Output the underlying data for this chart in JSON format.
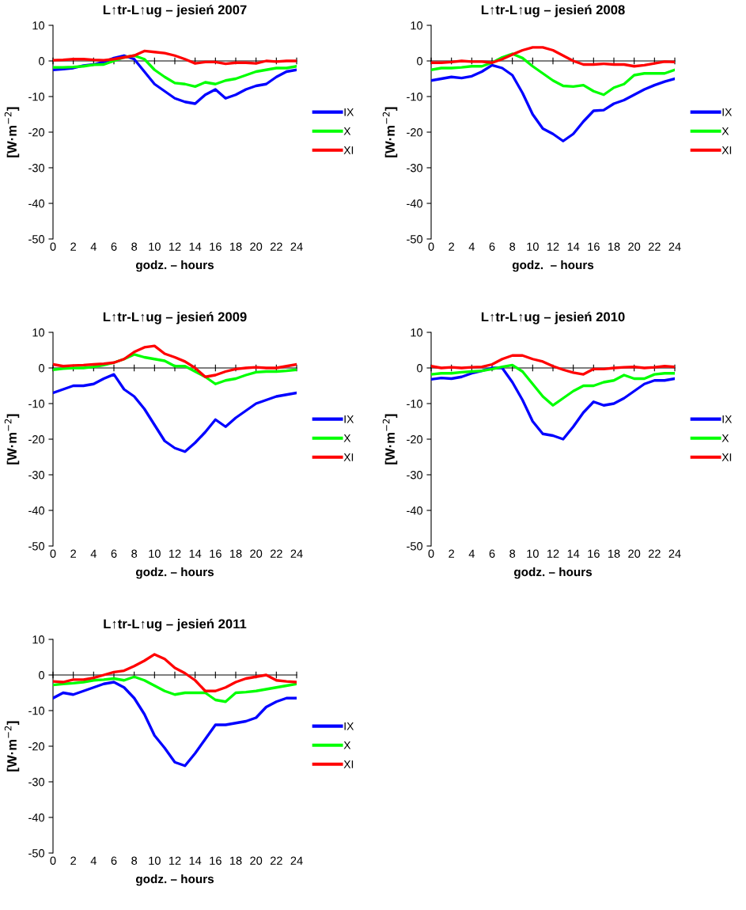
{
  "chart_data": [
    {
      "type": "line",
      "title": "L↑tr-L↑ug – jesień 2007",
      "xlabel": "godz. – hours",
      "ylabel": "[W·m$^{−2}$]",
      "x": [
        0,
        1,
        2,
        3,
        4,
        5,
        6,
        7,
        8,
        9,
        10,
        11,
        12,
        13,
        14,
        15,
        16,
        17,
        18,
        19,
        20,
        21,
        22,
        23,
        24
      ],
      "xlim": [
        0,
        24
      ],
      "ylim": [
        -50,
        10
      ],
      "xticks": [
        0,
        2,
        4,
        6,
        8,
        10,
        12,
        14,
        16,
        18,
        20,
        22,
        24
      ],
      "yticks": [
        -50,
        -40,
        -30,
        -20,
        -10,
        0,
        10
      ],
      "legend": "right",
      "marker": "none",
      "line_style": "solid",
      "series": [
        {
          "name": "IX",
          "color": "#0000ff",
          "values": [
            -2.5,
            -2.3,
            -2,
            -1.3,
            -1,
            -0.3,
            0.8,
            1.5,
            0.5,
            -3,
            -6.5,
            -8.5,
            -10.5,
            -11.5,
            -12,
            -9.5,
            -8,
            -10.5,
            -9.5,
            -8,
            -7,
            -6.5,
            -4.5,
            -3,
            -2.5
          ]
        },
        {
          "name": "X",
          "color": "#00ff00",
          "values": [
            -1.8,
            -1.8,
            -1.7,
            -1.5,
            -1.1,
            -1,
            0,
            1,
            1.5,
            0.5,
            -2.5,
            -4.5,
            -6.2,
            -6.5,
            -7.2,
            -6,
            -6.5,
            -5.5,
            -5,
            -4,
            -3,
            -2.5,
            -2,
            -2,
            -1.5
          ]
        },
        {
          "name": "XI",
          "color": "#ff0000",
          "values": [
            0.2,
            0.3,
            0.5,
            0.5,
            0.3,
            0.2,
            0.5,
            1,
            1.5,
            2.8,
            2.5,
            2.2,
            1.5,
            0.5,
            -0.7,
            -0.3,
            -0.3,
            -0.8,
            -0.5,
            -0.5,
            -0.7,
            0,
            -0.2,
            0,
            0
          ]
        }
      ]
    },
    {
      "type": "line",
      "title": "L↑tr-L↑ug – jesień 2008",
      "xlabel": "godz.  – hours",
      "ylabel": "[W·m$^{−2}$]",
      "x": [
        0,
        1,
        2,
        3,
        4,
        5,
        6,
        7,
        8,
        9,
        10,
        11,
        12,
        13,
        14,
        15,
        16,
        17,
        18,
        19,
        20,
        21,
        22,
        23,
        24
      ],
      "xlim": [
        0,
        24
      ],
      "ylim": [
        -50,
        10
      ],
      "xticks": [
        0,
        2,
        4,
        6,
        8,
        10,
        12,
        14,
        16,
        18,
        20,
        22,
        24
      ],
      "yticks": [
        -50,
        -40,
        -30,
        -20,
        -10,
        0,
        10
      ],
      "legend": "right",
      "marker": "none",
      "line_style": "solid",
      "series": [
        {
          "name": "IX",
          "color": "#0000ff",
          "values": [
            -5.5,
            -5,
            -4.5,
            -4.8,
            -4.3,
            -3,
            -1.2,
            -2,
            -4,
            -9,
            -15,
            -19,
            -20.5,
            -22.5,
            -20.5,
            -17,
            -14,
            -13.8,
            -12,
            -11,
            -9.5,
            -8,
            -6.8,
            -5.8,
            -5
          ]
        },
        {
          "name": "X",
          "color": "#00ff00",
          "values": [
            -2.5,
            -2,
            -2,
            -1.8,
            -1.5,
            -1.5,
            -0.5,
            1,
            2,
            0.8,
            -1.5,
            -3.5,
            -5.5,
            -7,
            -7.2,
            -6.8,
            -8.5,
            -9.5,
            -7.5,
            -6.5,
            -4,
            -3.5,
            -3.5,
            -3.5,
            -2.5
          ]
        },
        {
          "name": "XI",
          "color": "#ff0000",
          "values": [
            -0.5,
            -0.5,
            -0.3,
            0,
            -0.2,
            -0.2,
            -0.5,
            0.5,
            1.8,
            3,
            3.8,
            3.8,
            3,
            1.5,
            0,
            -1,
            -1,
            -0.8,
            -1,
            -1,
            -1.5,
            -1.2,
            -0.7,
            -0.2,
            -0.3
          ]
        }
      ]
    },
    {
      "type": "line",
      "title": "L↑tr-L↑ug – jesień 2009",
      "xlabel": "godz. – hours",
      "ylabel": "[W·m$^{−2}$]",
      "x": [
        0,
        1,
        2,
        3,
        4,
        5,
        6,
        7,
        8,
        9,
        10,
        11,
        12,
        13,
        14,
        15,
        16,
        17,
        18,
        19,
        20,
        21,
        22,
        23,
        24
      ],
      "xlim": [
        0,
        24
      ],
      "ylim": [
        -50,
        10
      ],
      "xticks": [
        0,
        2,
        4,
        6,
        8,
        10,
        12,
        14,
        16,
        18,
        20,
        22,
        24
      ],
      "yticks": [
        -50,
        -40,
        -30,
        -20,
        -10,
        0,
        10
      ],
      "legend": "right",
      "marker": "none",
      "line_style": "solid",
      "series": [
        {
          "name": "IX",
          "color": "#0000ff",
          "values": [
            -7,
            -6,
            -5,
            -5,
            -4.5,
            -3,
            -1.8,
            -6,
            -8,
            -11.5,
            -16,
            -20.5,
            -22.5,
            -23.5,
            -21,
            -18,
            -14.5,
            -16.5,
            -14,
            -12,
            -10,
            -9,
            -8,
            -7.5,
            -7
          ]
        },
        {
          "name": "X",
          "color": "#00ff00",
          "values": [
            -0.5,
            -0.2,
            0,
            0,
            0.3,
            0.8,
            1.5,
            2.5,
            3.8,
            3,
            2.5,
            2,
            0.5,
            0.5,
            -1,
            -2.5,
            -4.5,
            -3.5,
            -3,
            -2,
            -1.2,
            -1,
            -1,
            -0.8,
            -0.5
          ]
        },
        {
          "name": "XI",
          "color": "#ff0000",
          "values": [
            1,
            0.5,
            0.7,
            0.8,
            1,
            1.2,
            1.5,
            2.5,
            4.5,
            5.8,
            6.2,
            4,
            3,
            1.8,
            0,
            -2.5,
            -2,
            -1,
            -0.3,
            0,
            0.2,
            0,
            0,
            0.5,
            1
          ]
        }
      ]
    },
    {
      "type": "line",
      "title": "L↑tr-L↑ug – jesień 2010",
      "xlabel": "godz. – hours",
      "ylabel": "[W·m$^{−2}$]",
      "x": [
        0,
        1,
        2,
        3,
        4,
        5,
        6,
        7,
        8,
        9,
        10,
        11,
        12,
        13,
        14,
        15,
        16,
        17,
        18,
        19,
        20,
        21,
        22,
        23,
        24
      ],
      "xlim": [
        0,
        24
      ],
      "ylim": [
        -50,
        10
      ],
      "xticks": [
        0,
        2,
        4,
        6,
        8,
        10,
        12,
        14,
        16,
        18,
        20,
        22,
        24
      ],
      "yticks": [
        -50,
        -40,
        -30,
        -20,
        -10,
        0,
        10
      ],
      "legend": "right",
      "marker": "none",
      "line_style": "solid",
      "series": [
        {
          "name": "IX",
          "color": "#0000ff",
          "values": [
            -3.2,
            -2.8,
            -3,
            -2.5,
            -1.5,
            -0.8,
            0,
            0,
            -4,
            -9,
            -15,
            -18.5,
            -19,
            -20,
            -16.5,
            -12.5,
            -9.5,
            -10.5,
            -10,
            -8.5,
            -6.5,
            -4.5,
            -3.5,
            -3.5,
            -3
          ]
        },
        {
          "name": "X",
          "color": "#00ff00",
          "values": [
            -1.8,
            -1.5,
            -1.5,
            -1.2,
            -1,
            -0.8,
            -0.3,
            0.3,
            0.8,
            -1,
            -4.5,
            -8,
            -10.5,
            -8.5,
            -6.5,
            -5,
            -5,
            -4,
            -3.5,
            -2,
            -3,
            -3,
            -1.8,
            -1.5,
            -1.5
          ]
        },
        {
          "name": "XI",
          "color": "#ff0000",
          "values": [
            0.5,
            0,
            0.2,
            0,
            0.2,
            0.3,
            1,
            2.5,
            3.5,
            3.5,
            2.5,
            1.8,
            0.5,
            -0.5,
            -1.3,
            -1.8,
            -0.3,
            -0.3,
            0,
            0.2,
            0.3,
            0,
            0.2,
            0.5,
            0.3
          ]
        }
      ]
    },
    {
      "type": "line",
      "title": "L↑tr-L↑ug – jesień 2011",
      "xlabel": "godz. – hours",
      "ylabel": "[W·m$^{−2}$]",
      "x": [
        0,
        1,
        2,
        3,
        4,
        5,
        6,
        7,
        8,
        9,
        10,
        11,
        12,
        13,
        14,
        15,
        16,
        17,
        18,
        19,
        20,
        21,
        22,
        23,
        24
      ],
      "xlim": [
        0,
        24
      ],
      "ylim": [
        -50,
        10
      ],
      "xticks": [
        0,
        2,
        4,
        6,
        8,
        10,
        12,
        14,
        16,
        18,
        20,
        22,
        24
      ],
      "yticks": [
        -50,
        -40,
        -30,
        -20,
        -10,
        0,
        10
      ],
      "legend": "right",
      "marker": "none",
      "line_style": "solid",
      "series": [
        {
          "name": "IX",
          "color": "#0000ff",
          "values": [
            -6.5,
            -5,
            -5.5,
            -4.5,
            -3.5,
            -2.5,
            -2,
            -3.5,
            -6.5,
            -11,
            -17,
            -20.5,
            -24.5,
            -25.5,
            -22,
            -18,
            -14,
            -14,
            -13.5,
            -13,
            -12,
            -9,
            -7.5,
            -6.5,
            -6.5
          ]
        },
        {
          "name": "X",
          "color": "#00ff00",
          "values": [
            -2.8,
            -2.5,
            -2.3,
            -2,
            -1.5,
            -1.3,
            -1,
            -1.5,
            -0.5,
            -1.5,
            -3,
            -4.5,
            -5.5,
            -5,
            -5,
            -5,
            -7,
            -7.5,
            -5,
            -4.8,
            -4.5,
            -4,
            -3.5,
            -3,
            -2.5
          ]
        },
        {
          "name": "XI",
          "color": "#ff0000",
          "values": [
            -1.8,
            -2,
            -1.3,
            -1.3,
            -0.8,
            0,
            0.8,
            1.2,
            2.5,
            4,
            5.8,
            4.5,
            2,
            0.5,
            -1.5,
            -4.5,
            -4.5,
            -3.5,
            -2,
            -1,
            -0.5,
            0,
            -1.5,
            -1.8,
            -2
          ]
        }
      ]
    }
  ]
}
